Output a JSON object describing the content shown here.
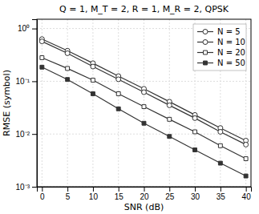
{
  "chart_data": {
    "type": "line",
    "title": "Q = 1, M_T = 2, R = 1, M_R = 2, QPSK",
    "xlabel": "SNR (dB)",
    "ylabel": "RMSE (symbol)",
    "x": [
      0,
      5,
      10,
      15,
      20,
      25,
      30,
      35,
      40
    ],
    "series": [
      {
        "name": "N = 5",
        "color": "#333333",
        "marker": "circle-open",
        "values": [
          0.63,
          0.38,
          0.22,
          0.125,
          0.072,
          0.041,
          0.023,
          0.013,
          0.0075
        ]
      },
      {
        "name": "N = 10",
        "color": "#333333",
        "marker": "circle-open",
        "values": [
          0.57,
          0.34,
          0.19,
          0.109,
          0.062,
          0.035,
          0.02,
          0.011,
          0.0063
        ]
      },
      {
        "name": "N = 20",
        "color": "#333333",
        "marker": "square-open",
        "values": [
          0.28,
          0.175,
          0.105,
          0.058,
          0.033,
          0.019,
          0.011,
          0.006,
          0.0034
        ]
      },
      {
        "name": "N = 50",
        "color": "#333333",
        "marker": "square",
        "values": [
          0.185,
          0.108,
          0.058,
          0.03,
          0.016,
          0.009,
          0.005,
          0.0028,
          0.0016
        ]
      }
    ],
    "xlim": [
      -1,
      41
    ],
    "xticks": [
      0,
      5,
      10,
      15,
      20,
      25,
      30,
      35,
      40
    ],
    "ylim": [
      0.001,
      1.5
    ],
    "yticks": [
      {
        "value": 0.001,
        "label": "10⁻³"
      },
      {
        "value": 0.01,
        "label": "10⁻²"
      },
      {
        "value": 0.1,
        "label": "10⁻¹"
      },
      {
        "value": 1,
        "label": "10⁰"
      }
    ],
    "log": "y",
    "grid": true,
    "legend": "upper right"
  }
}
